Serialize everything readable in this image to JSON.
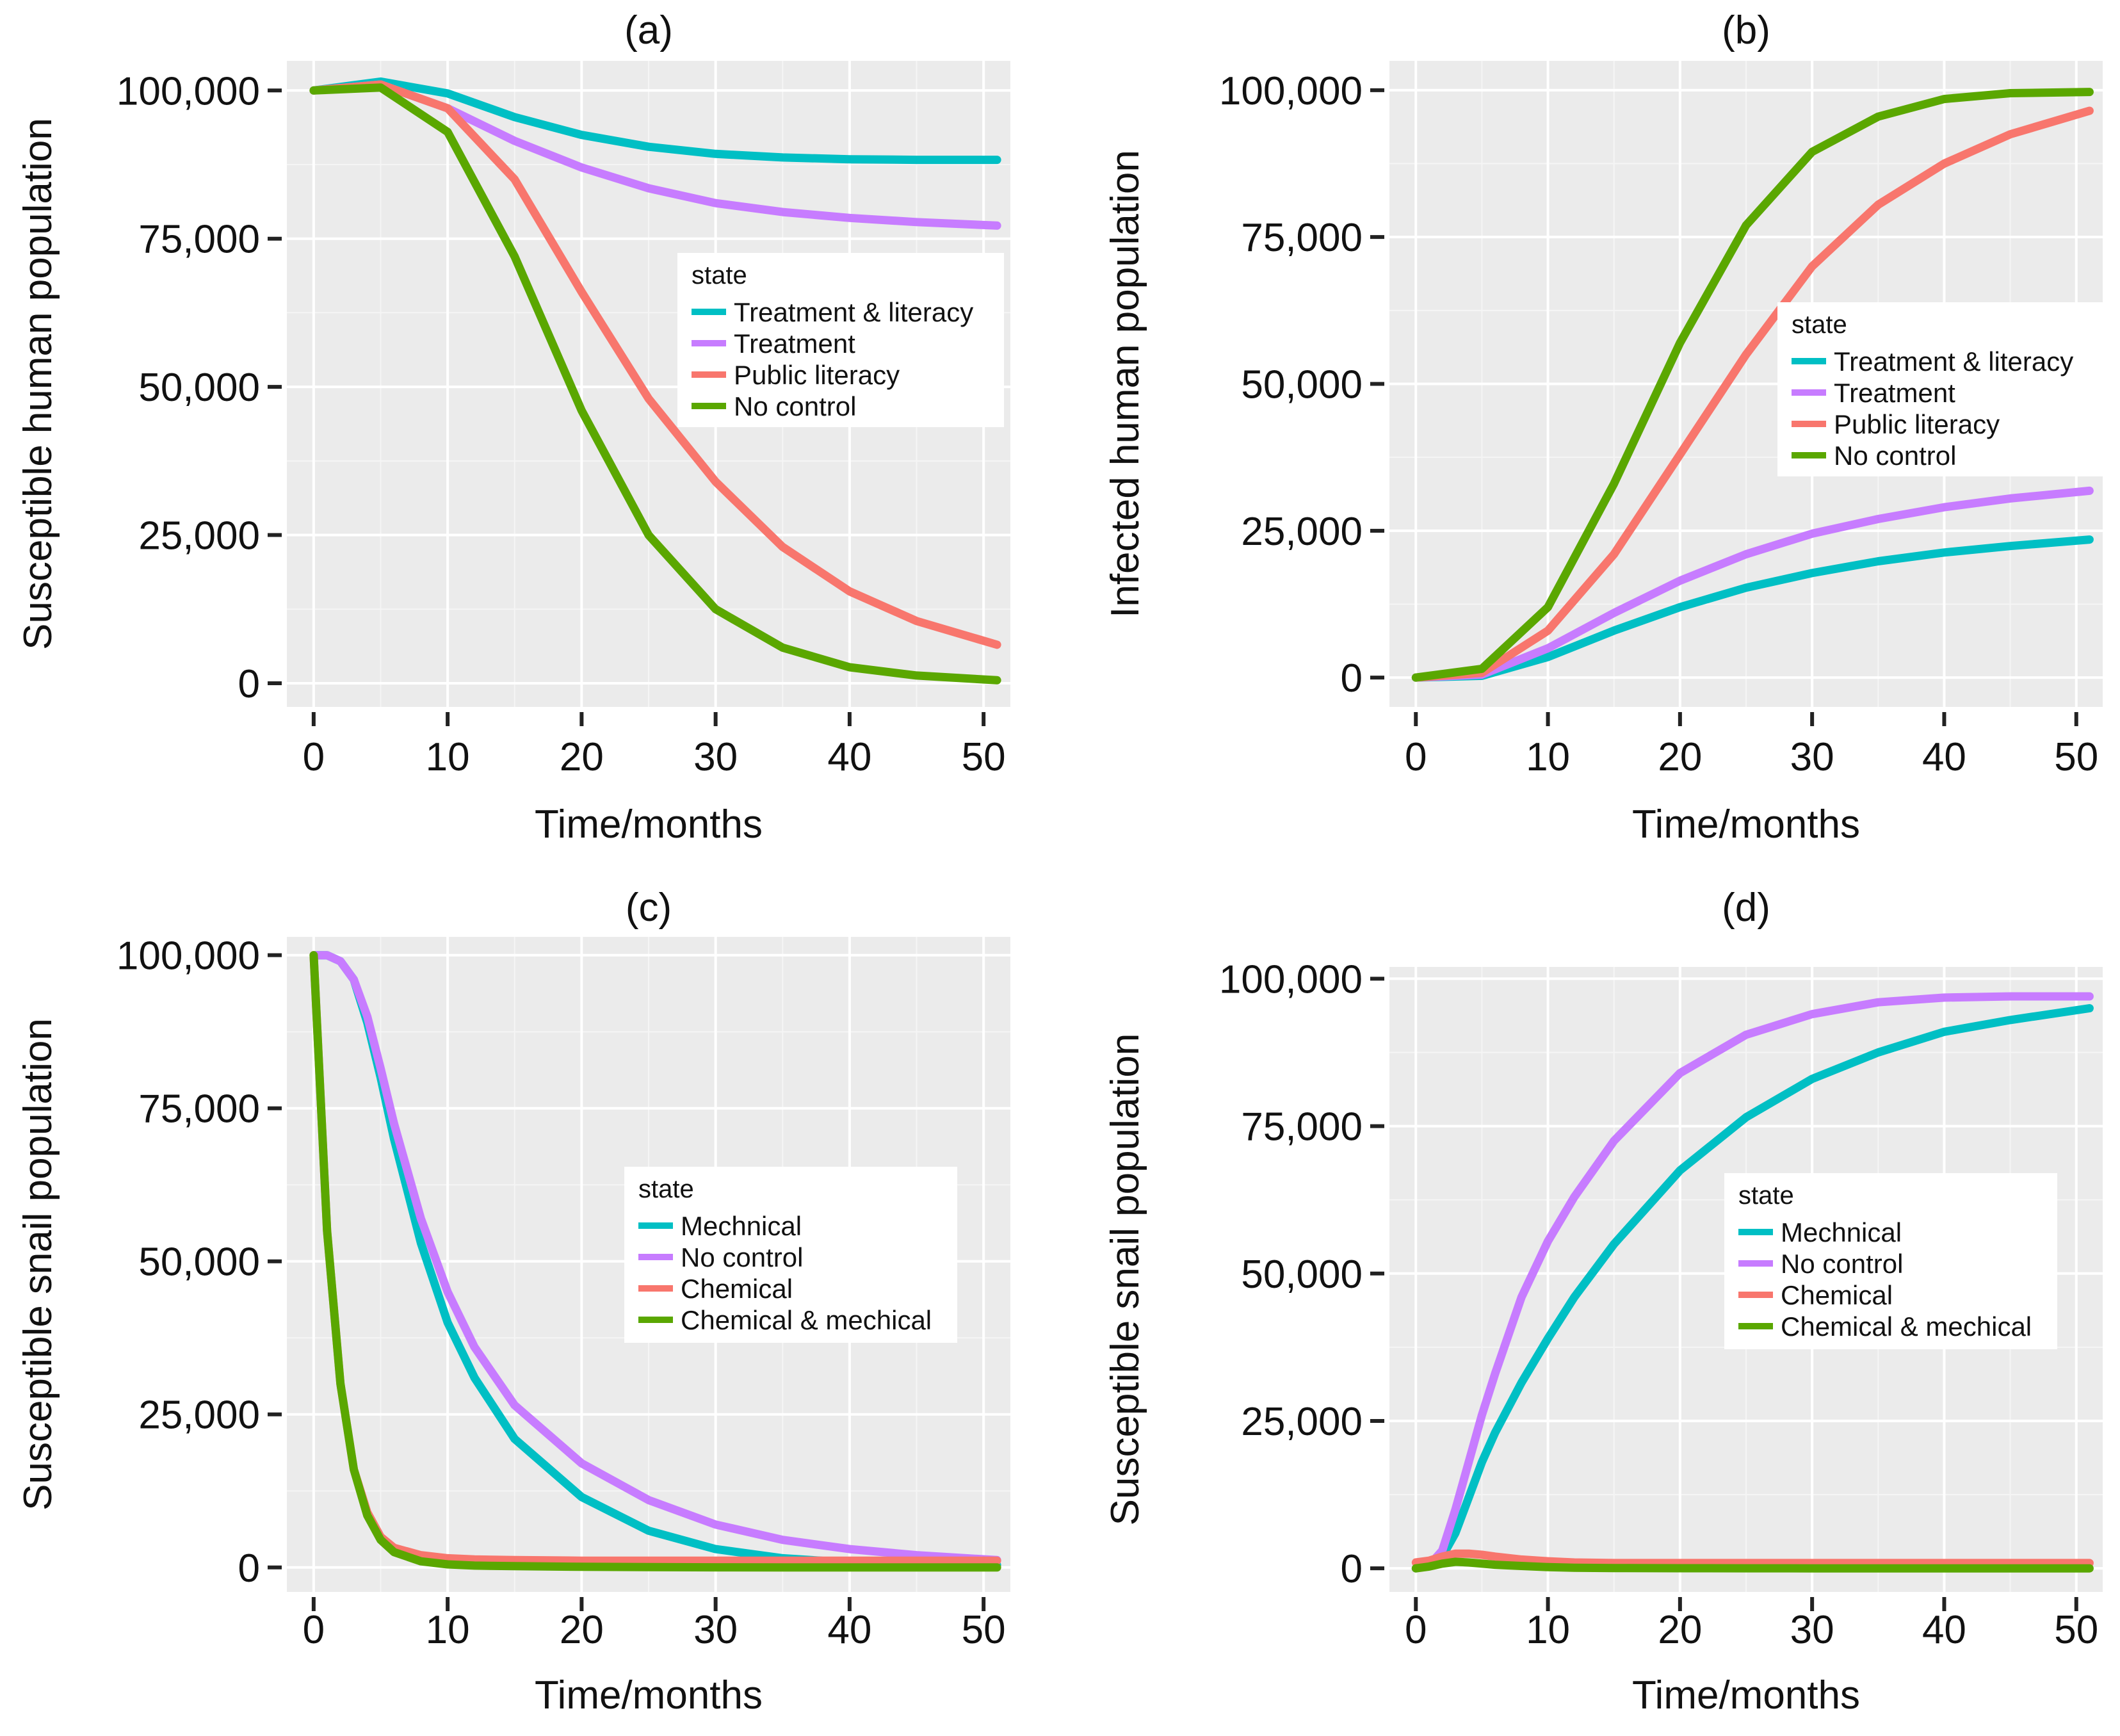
{
  "figure": {
    "chart_data": [
      {
        "type": "line",
        "panel_label": "(a)",
        "title": "(a)",
        "xlabel": "Time/months",
        "ylabel": "Susceptible human population",
        "xlim": [
          -2,
          52
        ],
        "ylim": [
          -4000,
          105000
        ],
        "x_ticks": [
          0,
          10,
          20,
          30,
          40,
          50
        ],
        "x_tick_labels": [
          "0",
          "10",
          "20",
          "30",
          "40",
          "50"
        ],
        "y_ticks": [
          0,
          25000,
          50000,
          75000,
          100000
        ],
        "y_tick_labels": [
          "0",
          "25,000",
          "50,000",
          "75,000",
          "100,000"
        ],
        "grid": true,
        "legend": {
          "title": "state",
          "position": "right-middle"
        },
        "x": [
          0,
          5,
          10,
          15,
          20,
          25,
          30,
          35,
          40,
          45,
          51
        ],
        "series": [
          {
            "name": "Treatment & literacy",
            "color": "#00BFC4",
            "values": [
              100000,
              101500,
              99500,
              95500,
              92500,
              90500,
              89300,
              88700,
              88400,
              88300,
              88300
            ]
          },
          {
            "name": "Treatment",
            "color": "#C77CFF",
            "values": [
              100000,
              101000,
              97000,
              91500,
              87000,
              83500,
              81000,
              79500,
              78500,
              77800,
              77200
            ]
          },
          {
            "name": "Public literacy",
            "color": "#F8766D",
            "values": [
              100000,
              101000,
              97000,
              85000,
              66000,
              48000,
              34000,
              23000,
              15500,
              10500,
              6500
            ]
          },
          {
            "name": "No control",
            "color": "#5AA700",
            "values": [
              100000,
              100500,
              93000,
              72000,
              46000,
              25000,
              12500,
              6000,
              2700,
              1300,
              500
            ]
          }
        ]
      },
      {
        "type": "line",
        "panel_label": "(b)",
        "title": "(b)",
        "xlabel": "Time/months",
        "ylabel": "Infected human population",
        "xlim": [
          -2,
          52
        ],
        "ylim": [
          -5000,
          105000
        ],
        "x_ticks": [
          0,
          10,
          20,
          30,
          40,
          50
        ],
        "x_tick_labels": [
          "0",
          "10",
          "20",
          "30",
          "40",
          "50"
        ],
        "y_ticks": [
          0,
          25000,
          50000,
          75000,
          100000
        ],
        "y_tick_labels": [
          "0",
          "25,000",
          "50,000",
          "75,000",
          "100,000"
        ],
        "grid": true,
        "legend": {
          "title": "state",
          "position": "right-middle"
        },
        "x": [
          0,
          5,
          10,
          15,
          20,
          25,
          30,
          35,
          40,
          45,
          51
        ],
        "series": [
          {
            "name": "Treatment & literacy",
            "color": "#00BFC4",
            "values": [
              0,
              300,
              3500,
              8000,
              12000,
              15300,
              17800,
              19800,
              21300,
              22400,
              23500
            ]
          },
          {
            "name": "Treatment",
            "color": "#C77CFF",
            "values": [
              0,
              500,
              5000,
              11000,
              16500,
              21000,
              24500,
              27000,
              29000,
              30500,
              31800
            ]
          },
          {
            "name": "Public literacy",
            "color": "#F8766D",
            "values": [
              0,
              800,
              8000,
              21000,
              38000,
              55000,
              70000,
              80500,
              87500,
              92500,
              96500
            ]
          },
          {
            "name": "No control",
            "color": "#5AA700",
            "values": [
              0,
              1500,
              12000,
              33000,
              57000,
              77000,
              89500,
              95500,
              98500,
              99500,
              99700
            ]
          }
        ]
      },
      {
        "type": "line",
        "panel_label": "(c)",
        "title": "(c)",
        "xlabel": "Time/months",
        "ylabel": "Susceptible snail population",
        "xlim": [
          -2,
          52
        ],
        "ylim": [
          -4000,
          103000
        ],
        "x_ticks": [
          0,
          10,
          20,
          30,
          40,
          50
        ],
        "x_tick_labels": [
          "0",
          "10",
          "20",
          "30",
          "40",
          "50"
        ],
        "y_ticks": [
          0,
          25000,
          50000,
          75000,
          100000
        ],
        "y_tick_labels": [
          "0",
          "25,000",
          "50,000",
          "75,000",
          "100,000"
        ],
        "grid": true,
        "legend": {
          "title": "state",
          "position": "right-middle"
        },
        "x": [
          0,
          1,
          2,
          3,
          4,
          5,
          6,
          8,
          10,
          12,
          15,
          20,
          25,
          30,
          35,
          40,
          45,
          51
        ],
        "series": [
          {
            "name": "Mechnical",
            "color": "#00BFC4",
            "values": [
              100000,
              100000,
              99000,
              96000,
              89000,
              80000,
              70000,
              53000,
              40000,
              31000,
              21000,
              11500,
              6000,
              3000,
              1500,
              800,
              500,
              400
            ]
          },
          {
            "name": "No control",
            "color": "#C77CFF",
            "values": [
              100000,
              100000,
              99000,
              96000,
              90000,
              81500,
              72500,
              57000,
              45000,
              36000,
              26500,
              17000,
              11000,
              7000,
              4500,
              3000,
              2000,
              1200
            ]
          },
          {
            "name": "Chemical",
            "color": "#F8766D",
            "values": [
              100000,
              55000,
              30000,
              16000,
              9000,
              5000,
              3200,
              2000,
              1500,
              1300,
              1200,
              1100,
              1100,
              1100,
              1100,
              1100,
              1100,
              1100
            ]
          },
          {
            "name": "Chemical & mechical",
            "color": "#5AA700",
            "values": [
              100000,
              55000,
              30000,
              16000,
              8500,
              4500,
              2500,
              1000,
              500,
              300,
              200,
              100,
              50,
              20,
              10,
              5,
              0,
              0
            ]
          }
        ]
      },
      {
        "type": "line",
        "panel_label": "(d)",
        "title": "(d)",
        "xlabel": "Time/months",
        "ylabel": "Susceptible snail population",
        "xlim": [
          -2,
          52
        ],
        "ylim": [
          -4000,
          102000
        ],
        "x_ticks": [
          0,
          10,
          20,
          30,
          40,
          50
        ],
        "x_tick_labels": [
          "0",
          "10",
          "20",
          "30",
          "40",
          "50"
        ],
        "y_ticks": [
          0,
          25000,
          50000,
          75000,
          100000
        ],
        "y_tick_labels": [
          "0",
          "25,000",
          "50,000",
          "75,000",
          "100,000"
        ],
        "grid": true,
        "legend": {
          "title": "state",
          "position": "right-middle"
        },
        "x": [
          0,
          1,
          2,
          3,
          4,
          5,
          6,
          8,
          10,
          12,
          15,
          20,
          25,
          30,
          35,
          40,
          45,
          51
        ],
        "series": [
          {
            "name": "Mechnical",
            "color": "#00BFC4",
            "values": [
              0,
              500,
              2000,
              6000,
              12000,
              18000,
              23000,
              31500,
              39000,
              46000,
              55000,
              67500,
              76500,
              83000,
              87500,
              91000,
              93000,
              95000
            ]
          },
          {
            "name": "No control",
            "color": "#C77CFF",
            "values": [
              0,
              500,
              3000,
              10000,
              18000,
              26000,
              33000,
              46000,
              55500,
              63000,
              72500,
              84000,
              90500,
              94000,
              96000,
              96800,
              97000,
              97000
            ]
          },
          {
            "name": "Chemical",
            "color": "#F8766D",
            "values": [
              1000,
              1300,
              2000,
              2500,
              2500,
              2300,
              2000,
              1500,
              1200,
              1000,
              900,
              900,
              900,
              900,
              900,
              900,
              900,
              900
            ]
          },
          {
            "name": "Chemical & mechical",
            "color": "#5AA700",
            "values": [
              0,
              300,
              800,
              1100,
              1000,
              800,
              600,
              400,
              200,
              100,
              50,
              20,
              10,
              0,
              0,
              0,
              0,
              0
            ]
          }
        ]
      }
    ]
  }
}
